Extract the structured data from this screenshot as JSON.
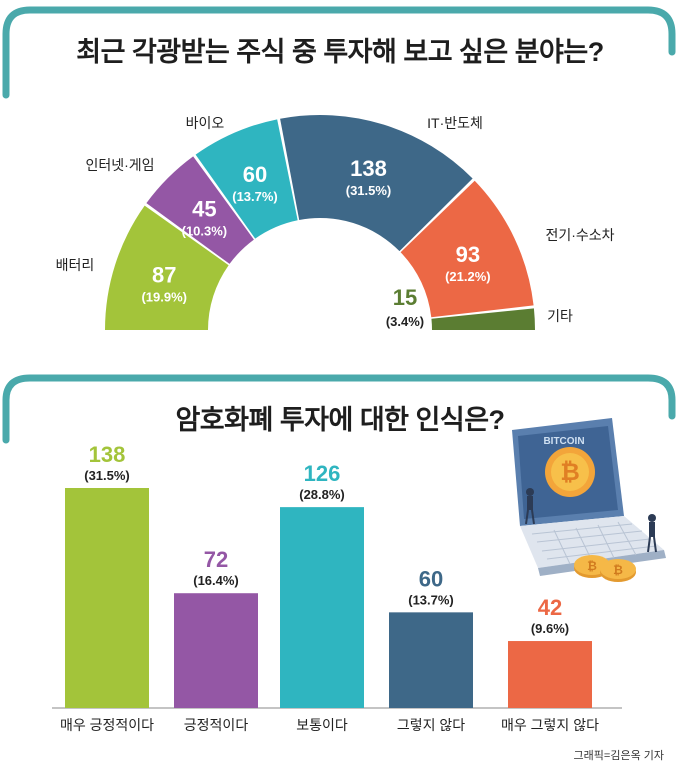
{
  "titles": {
    "donut": "최근 각광받는 주식 중 투자해 보고 싶은 분야는?",
    "bars": "암호화폐 투자에 대한 인식은?"
  },
  "credit": "그래픽=김은옥 기자",
  "colors": {
    "frame": "#4aa9ab",
    "green": "#a3c43a",
    "purple": "#9457a5",
    "teal": "#2fb5c0",
    "navy": "#3e6888",
    "orange": "#ec6845",
    "darkgreen": "#5b7d32"
  },
  "illustration": {
    "icon": "laptop-bitcoin-illustration",
    "screen_text": "BITCOIN"
  },
  "chart_data": [
    {
      "type": "pie",
      "variant": "half-donut",
      "title": "최근 각광받는 주식 중 투자해 보고 싶은 분야는?",
      "slices": [
        {
          "label": "배터리",
          "value": 87,
          "percent": "(19.9%)",
          "color": "#a3c43a"
        },
        {
          "label": "인터넷·게임",
          "value": 45,
          "percent": "(10.3%)",
          "color": "#9457a5"
        },
        {
          "label": "바이오",
          "value": 60,
          "percent": "(13.7%)",
          "color": "#2fb5c0"
        },
        {
          "label": "IT·반도체",
          "value": 138,
          "percent": "(31.5%)",
          "color": "#3e6888"
        },
        {
          "label": "전기·수소차",
          "value": 93,
          "percent": "(21.2%)",
          "color": "#ec6845"
        },
        {
          "label": "기타",
          "value": 15,
          "percent": "(3.4%)",
          "color": "#5b7d32"
        }
      ]
    },
    {
      "type": "bar",
      "title": "암호화폐 투자에 대한 인식은?",
      "categories": [
        "매우 긍정적이다",
        "긍정적이다",
        "보통이다",
        "그렇지 않다",
        "매우 그렇지 않다"
      ],
      "values": [
        138,
        72,
        126,
        60,
        42
      ],
      "percents": [
        "(31.5%)",
        "(16.4%)",
        "(28.8%)",
        "(13.7%)",
        "(9.6%)"
      ],
      "colors": [
        "#a3c43a",
        "#9457a5",
        "#2fb5c0",
        "#3e6888",
        "#ec6845"
      ],
      "ylim": [
        0,
        150
      ]
    }
  ]
}
